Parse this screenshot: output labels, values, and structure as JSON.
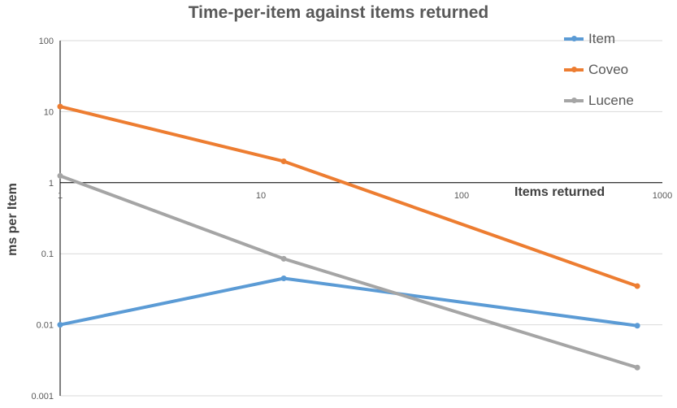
{
  "chart_data": {
    "type": "line",
    "title": "Time-per-item against items returned",
    "xlabel": "Items returned",
    "ylabel": "ms per Item",
    "x_scale": "log",
    "y_scale": "log",
    "xlim": [
      1,
      1000
    ],
    "ylim": [
      0.001,
      100
    ],
    "x_ticks": [
      "1",
      "10",
      "100",
      "1000"
    ],
    "y_ticks": [
      "100",
      "10",
      "1",
      "0.1",
      "0.01",
      "0.001"
    ],
    "grid": true,
    "legend_position": "top-right",
    "x": [
      1,
      13,
      750
    ],
    "series": [
      {
        "name": "Item",
        "color": "#5B9BD5",
        "values": [
          0.01,
          0.045,
          0.0097
        ]
      },
      {
        "name": "Coveo",
        "color": "#ED7D31",
        "values": [
          11.8,
          2.0,
          0.035
        ]
      },
      {
        "name": "Lucene",
        "color": "#A5A5A5",
        "values": [
          1.25,
          0.085,
          0.0025
        ]
      }
    ]
  }
}
